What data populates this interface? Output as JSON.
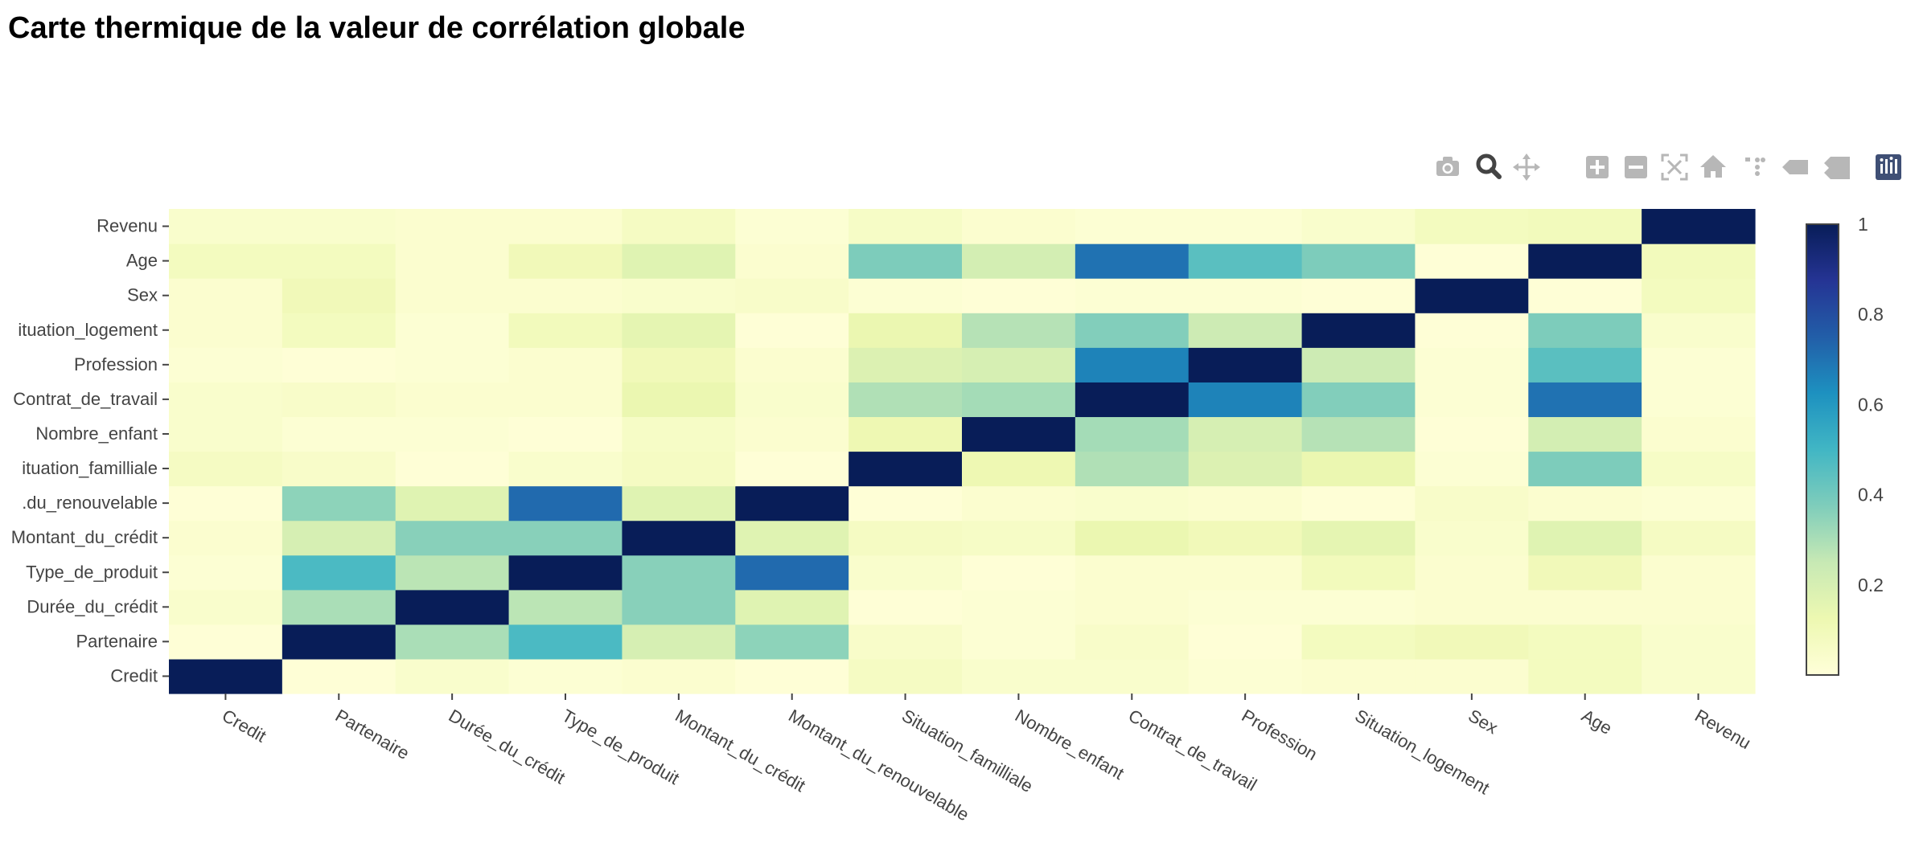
{
  "title": "Carte thermique de la valeur de corrélation globale",
  "toolbar": {
    "icons": [
      "camera-icon",
      "zoom-icon",
      "pan-icon",
      "zoom-in-icon",
      "zoom-out-icon",
      "autoscale-icon",
      "reset-axes-icon",
      "spike-lines-icon",
      "hover-closest-icon",
      "hover-compare-icon",
      "plotly-logo-icon"
    ],
    "icon_color": "#b7b7b7",
    "active_icon_color": "#444444",
    "logo_color": "#3f4f75"
  },
  "chart_data": {
    "type": "heatmap",
    "title": "Carte thermique de la valeur de corrélation globale",
    "x": [
      "Credit",
      "Partenaire",
      "Durée_du_crédit",
      "Type_de_produit",
      "Montant_du_crédit",
      "Montant_du_renouvelable",
      "Situation_familliale",
      "Nombre_enfant",
      "Contrat_de_travail",
      "Profession",
      "Situation_logement",
      "Sex",
      "Age",
      "Revenu"
    ],
    "y": [
      "Credit",
      "Partenaire",
      "Durée_du_crédit",
      "Type_de_produit",
      "Montant_du_crédit",
      "Montant_du_renouvelable",
      "Situation_familliale",
      "Nombre_enfant",
      "Contrat_de_travail",
      "Profession",
      "Situation_logement",
      "Sex",
      "Age",
      "Revenu"
    ],
    "y_tick_labels": [
      "Credit",
      "Partenaire",
      "Durée_du_crédit",
      "Type_de_produit",
      "Montant_du_crédit",
      ".du_renouvelable",
      "ituation_familliale",
      "Nombre_enfant",
      "Contrat_de_travail",
      "Profession",
      "ituation_logement",
      "Sex",
      "Age",
      "Revenu"
    ],
    "z": [
      [
        1.0,
        0.01,
        0.04,
        0.02,
        0.03,
        0.01,
        0.07,
        0.04,
        0.04,
        0.02,
        0.03,
        0.03,
        0.08,
        0.04
      ],
      [
        0.01,
        1.0,
        0.3,
        0.48,
        0.2,
        0.35,
        0.05,
        0.02,
        0.05,
        0.01,
        0.08,
        0.1,
        0.08,
        0.04
      ],
      [
        0.04,
        0.3,
        1.0,
        0.27,
        0.36,
        0.17,
        0.01,
        0.02,
        0.03,
        0.02,
        0.02,
        0.03,
        0.03,
        0.03
      ],
      [
        0.02,
        0.48,
        0.27,
        1.0,
        0.36,
        0.72,
        0.04,
        0.01,
        0.03,
        0.03,
        0.09,
        0.03,
        0.1,
        0.03
      ],
      [
        0.03,
        0.2,
        0.36,
        0.36,
        1.0,
        0.17,
        0.07,
        0.06,
        0.13,
        0.1,
        0.15,
        0.04,
        0.17,
        0.07
      ],
      [
        0.01,
        0.35,
        0.17,
        0.72,
        0.17,
        1.0,
        0.01,
        0.03,
        0.04,
        0.03,
        0.01,
        0.05,
        0.03,
        0.02
      ],
      [
        0.07,
        0.05,
        0.01,
        0.04,
        0.07,
        0.01,
        1.0,
        0.12,
        0.29,
        0.18,
        0.13,
        0.02,
        0.38,
        0.06
      ],
      [
        0.04,
        0.02,
        0.02,
        0.01,
        0.06,
        0.03,
        0.12,
        1.0,
        0.31,
        0.2,
        0.28,
        0.01,
        0.21,
        0.03
      ],
      [
        0.04,
        0.05,
        0.03,
        0.03,
        0.13,
        0.04,
        0.29,
        0.31,
        1.0,
        0.66,
        0.37,
        0.02,
        0.7,
        0.02
      ],
      [
        0.02,
        0.01,
        0.02,
        0.03,
        0.1,
        0.03,
        0.18,
        0.2,
        0.66,
        1.0,
        0.23,
        0.02,
        0.45,
        0.02
      ],
      [
        0.03,
        0.08,
        0.02,
        0.09,
        0.15,
        0.01,
        0.13,
        0.28,
        0.37,
        0.23,
        1.0,
        0.01,
        0.38,
        0.04
      ],
      [
        0.03,
        0.1,
        0.03,
        0.03,
        0.04,
        0.05,
        0.02,
        0.01,
        0.02,
        0.02,
        0.01,
        1.0,
        0.01,
        0.08
      ],
      [
        0.08,
        0.08,
        0.03,
        0.1,
        0.17,
        0.03,
        0.38,
        0.21,
        0.7,
        0.45,
        0.38,
        0.01,
        1.0,
        0.09
      ],
      [
        0.04,
        0.04,
        0.03,
        0.03,
        0.07,
        0.02,
        0.06,
        0.03,
        0.02,
        0.02,
        0.04,
        0.08,
        0.09,
        1.0
      ]
    ],
    "colorscale": "YlGnBu",
    "colorbar": {
      "ticks": [
        0.2,
        0.4,
        0.6,
        0.8,
        1
      ],
      "range": [
        0,
        1
      ]
    },
    "x_tick_angle": 30,
    "grid": false,
    "legend": "colorbar-right"
  }
}
